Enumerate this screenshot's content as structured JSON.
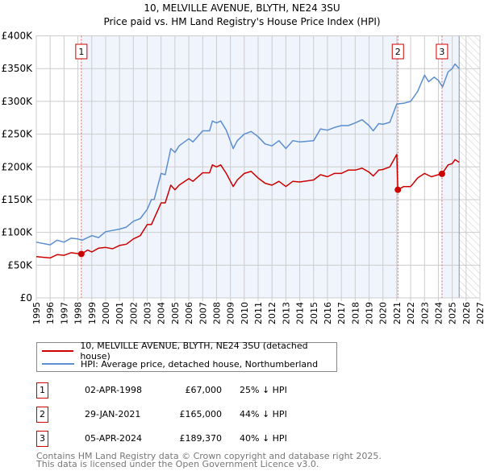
{
  "chart_data": {
    "type": "line",
    "title": "10, MELVILLE AVENUE, BLYTH, NE24 3SU",
    "subtitle": "Price paid vs. HM Land Registry's House Price Index (HPI)",
    "xlim": [
      1995,
      2027
    ],
    "ylim": [
      0,
      400000
    ],
    "x_ticks": [
      "1995",
      "1996",
      "1997",
      "1998",
      "1999",
      "2000",
      "2001",
      "2002",
      "2003",
      "2004",
      "2005",
      "2006",
      "2007",
      "2008",
      "2009",
      "2010",
      "2011",
      "2012",
      "2013",
      "2014",
      "2015",
      "2016",
      "2017",
      "2018",
      "2019",
      "2020",
      "2021",
      "2022",
      "2023",
      "2024",
      "2025",
      "2026",
      "2027"
    ],
    "y_ticks": [
      {
        "v": 0,
        "label": "£0"
      },
      {
        "v": 50000,
        "label": "£50K"
      },
      {
        "v": 100000,
        "label": "£100K"
      },
      {
        "v": 150000,
        "label": "£150K"
      },
      {
        "v": 200000,
        "label": "£200K"
      },
      {
        "v": 250000,
        "label": "£250K"
      },
      {
        "v": 300000,
        "label": "£300K"
      },
      {
        "v": 350000,
        "label": "£350K"
      },
      {
        "v": 400000,
        "label": "£400K"
      }
    ],
    "grid": true,
    "forecast_start": 2025.5,
    "series": [
      {
        "name": "10, MELVILLE AVENUE, BLYTH, NE24 3SU (detached house)",
        "color": "#cc0000",
        "x": [
          1995,
          1996,
          1996.5,
          1997,
          1997.5,
          1998.25,
          1998.7,
          1999,
          1999.5,
          2000,
          2000.5,
          2001,
          2001.5,
          2002,
          2002.5,
          2003,
          2003.3,
          2004,
          2004.3,
          2004.7,
          2005,
          2005.3,
          2006,
          2006.3,
          2007,
          2007.5,
          2007.7,
          2008,
          2008.3,
          2008.7,
          2009.2,
          2009.5,
          2010,
          2010.5,
          2011,
          2011.5,
          2012,
          2012.5,
          2013,
          2013.5,
          2014,
          2015,
          2015.5,
          2016,
          2016.5,
          2017,
          2017.5,
          2018,
          2018.5,
          2019,
          2019.3,
          2019.7,
          2020,
          2020.5,
          2021.0,
          2021.08,
          2021.5,
          2022,
          2022.5,
          2023,
          2023.5,
          2024,
          2024.26,
          2024.7,
          2025,
          2025.2,
          2025.5
        ],
        "y": [
          63000,
          61000,
          66000,
          65000,
          69000,
          67000,
          73000,
          70000,
          76000,
          77000,
          75000,
          80000,
          82000,
          90000,
          95000,
          112000,
          112000,
          145000,
          145000,
          172000,
          165000,
          172000,
          182000,
          178000,
          191000,
          191000,
          203000,
          200000,
          203000,
          190000,
          170000,
          180000,
          190000,
          193000,
          183000,
          175000,
          172000,
          178000,
          170000,
          178000,
          177000,
          180000,
          188000,
          185000,
          190000,
          190000,
          195000,
          195000,
          198000,
          192000,
          186000,
          195000,
          196000,
          200000,
          219000,
          165000,
          170000,
          170000,
          183000,
          190000,
          185000,
          188000,
          189370,
          203000,
          205000,
          211000,
          207000
        ]
      },
      {
        "name": "HPI: Average price, detached house, Northumberland",
        "color": "#5b8fd0",
        "x": [
          1995,
          1996,
          1996.5,
          1997,
          1997.5,
          1998,
          1998.3,
          1999,
          1999.5,
          2000,
          2000.5,
          2001,
          2001.5,
          2002,
          2002.5,
          2003,
          2003.3,
          2003.5,
          2004,
          2004.3,
          2004.7,
          2005,
          2005.3,
          2006,
          2006.3,
          2007,
          2007.5,
          2007.7,
          2008,
          2008.3,
          2008.7,
          2009.2,
          2009.5,
          2010,
          2010.5,
          2011,
          2011.5,
          2012,
          2012.5,
          2013,
          2013.5,
          2014,
          2015,
          2015.5,
          2016,
          2016.5,
          2017,
          2017.5,
          2018,
          2018.5,
          2019,
          2019.3,
          2019.7,
          2020,
          2020.5,
          2021,
          2021.5,
          2022,
          2022.5,
          2023,
          2023.3,
          2023.7,
          2024,
          2024.3,
          2024.7,
          2025,
          2025.2,
          2025.5
        ],
        "y": [
          85000,
          81000,
          88000,
          85000,
          91000,
          90000,
          88000,
          95000,
          92000,
          101000,
          103000,
          105000,
          108000,
          117000,
          121000,
          135000,
          150000,
          150000,
          190000,
          188000,
          228000,
          222000,
          232000,
          243000,
          238000,
          255000,
          255000,
          270000,
          267000,
          270000,
          256000,
          228000,
          240000,
          250000,
          254000,
          246000,
          235000,
          232000,
          240000,
          228000,
          240000,
          238000,
          240000,
          258000,
          256000,
          260000,
          263000,
          263000,
          267000,
          272000,
          263000,
          255000,
          266000,
          265000,
          268000,
          296000,
          297000,
          300000,
          315000,
          340000,
          330000,
          337000,
          332000,
          322000,
          345000,
          350000,
          357000,
          350000
        ]
      }
    ],
    "sales": [
      {
        "id": "1",
        "x": 1998.25,
        "y": 67000,
        "date": "02-APR-1998",
        "price": "£67,000",
        "hpi": "25% ↓ HPI"
      },
      {
        "id": "2",
        "x": 2021.08,
        "y": 165000,
        "date": "29-JAN-2021",
        "price": "£165,000",
        "hpi": "44% ↓ HPI"
      },
      {
        "id": "3",
        "x": 2024.26,
        "y": 189370,
        "date": "05-APR-2024",
        "price": "£189,370",
        "hpi": "40% ↓ HPI"
      }
    ],
    "legend": [
      "10, MELVILLE AVENUE, BLYTH, NE24 3SU (detached house)",
      "HPI: Average price, detached house, Northumberland"
    ],
    "legend_position": "bottom"
  },
  "footer": [
    "Contains HM Land Registry data © Crown copyright and database right 2025.",
    "This data is licensed under the Open Government Licence v3.0."
  ]
}
